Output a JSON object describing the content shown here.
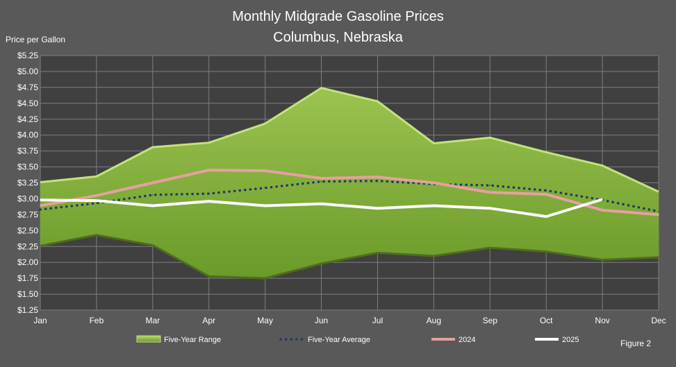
{
  "chart_data": {
    "type": "line",
    "title": "Monthly Midgrade Gasoline Prices",
    "subtitle": "Columbus, Nebraska",
    "ylabel": "Price per Gallon",
    "xlabel": "",
    "categories": [
      "Jan",
      "Feb",
      "Mar",
      "Apr",
      "May",
      "Jun",
      "Jul",
      "Aug",
      "Sep",
      "Oct",
      "Nov",
      "Dec"
    ],
    "ylim": [
      1.25,
      5.25
    ],
    "ytick_step": 0.25,
    "grid": true,
    "legend_position": "bottom",
    "range": {
      "name": "Five-Year Range",
      "low": [
        2.26,
        2.43,
        2.27,
        1.78,
        1.75,
        1.98,
        2.15,
        2.1,
        2.23,
        2.17,
        2.04,
        2.08
      ],
      "high": [
        3.26,
        3.35,
        3.81,
        3.88,
        4.18,
        4.74,
        4.53,
        3.87,
        3.96,
        3.73,
        3.52,
        3.11
      ],
      "color": "#8db441"
    },
    "series": [
      {
        "name": "Five-Year Average",
        "style": "dotted",
        "color": "#1f3864",
        "values": [
          2.83,
          2.93,
          3.06,
          3.08,
          3.17,
          3.27,
          3.28,
          3.23,
          3.21,
          3.13,
          2.98,
          2.8
        ]
      },
      {
        "name": "2024",
        "style": "solid",
        "color": "#e6a0a0",
        "values": [
          2.89,
          3.05,
          3.25,
          3.45,
          3.44,
          3.32,
          3.34,
          3.25,
          3.1,
          3.07,
          2.82,
          2.75
        ]
      },
      {
        "name": "2025",
        "style": "solid",
        "color": "#ffffff",
        "values": [
          2.98,
          2.97,
          2.89,
          2.96,
          2.89,
          2.92,
          2.85,
          2.89,
          2.85,
          2.72,
          2.99,
          null
        ]
      }
    ]
  },
  "figure_label": "Figure 2"
}
